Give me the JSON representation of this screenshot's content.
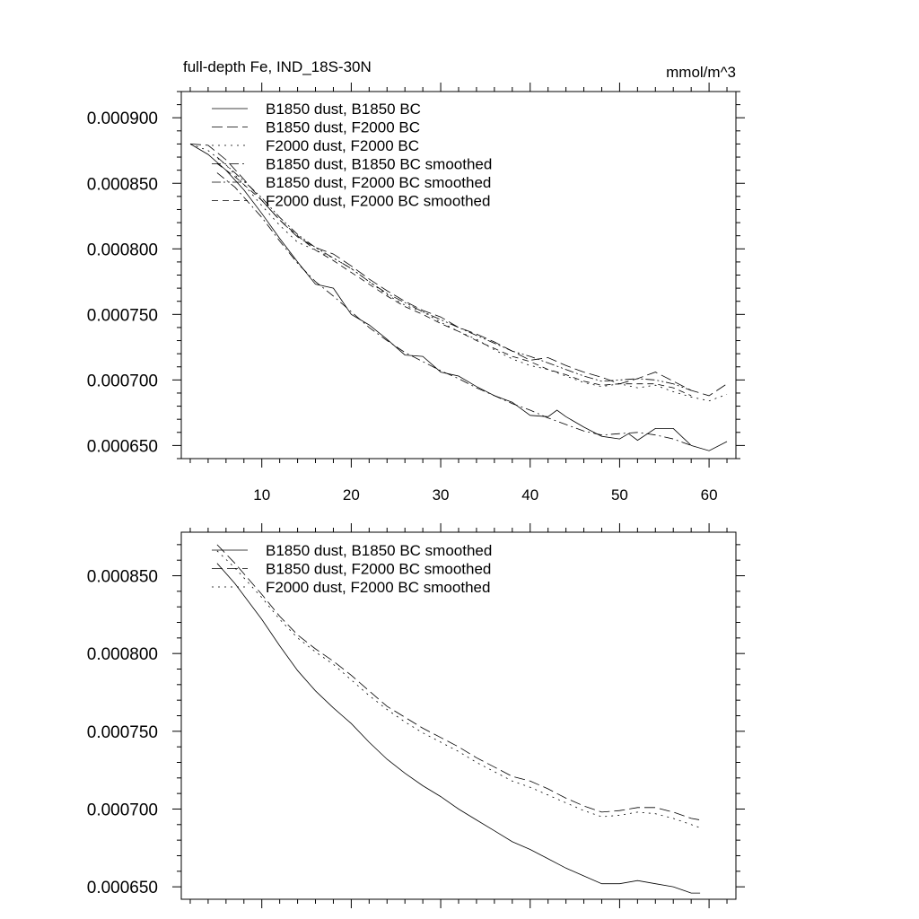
{
  "chart_data": [
    {
      "type": "line",
      "title": "full-depth Fe, IND_18S-30N",
      "units": "mmol/m^3",
      "xlim": [
        1,
        63
      ],
      "ylim": [
        0.00064,
        0.00092
      ],
      "xticks": [
        10,
        20,
        30,
        40,
        50,
        60
      ],
      "yticks": [
        0.00065,
        0.0007,
        0.00075,
        0.0008,
        0.00085,
        0.0009
      ],
      "ytick_labels": [
        "0.000650",
        "0.000700",
        "0.000750",
        "0.000800",
        "0.000850",
        "0.000900"
      ],
      "xtick_labels": [
        "10",
        "20",
        "30",
        "40",
        "50",
        "60"
      ],
      "series": [
        {
          "name": "B1850 dust, B1850 BC",
          "dash": "solid",
          "x": [
            2,
            4,
            6,
            8,
            10,
            12,
            14,
            16,
            18,
            20,
            22,
            24,
            26,
            28,
            30,
            32,
            34,
            36,
            38,
            40,
            42,
            43,
            44,
            46,
            48,
            50,
            51,
            52,
            54,
            56,
            58,
            60,
            62
          ],
          "values": [
            0.00088,
            0.000872,
            0.00086,
            0.000845,
            0.000827,
            0.000808,
            0.00079,
            0.000773,
            0.00077,
            0.00075,
            0.000742,
            0.000731,
            0.000719,
            0.000718,
            0.000706,
            0.000703,
            0.000695,
            0.000688,
            0.000683,
            0.000673,
            0.000672,
            0.000677,
            0.000672,
            0.000664,
            0.000657,
            0.000655,
            0.000659,
            0.000654,
            0.000663,
            0.000663,
            0.00065,
            0.000646,
            0.000653
          ]
        },
        {
          "name": "B1850 dust, F2000 BC",
          "dash": "long",
          "x": [
            2,
            4,
            6,
            8,
            10,
            12,
            14,
            16,
            18,
            20,
            22,
            24,
            26,
            28,
            30,
            32,
            34,
            36,
            38,
            40,
            42,
            44,
            46,
            48,
            50,
            52,
            54,
            56,
            58,
            60,
            62
          ],
          "values": [
            0.00088,
            0.000879,
            0.000868,
            0.000853,
            0.000837,
            0.000822,
            0.000809,
            0.000801,
            0.000796,
            0.000787,
            0.000777,
            0.000768,
            0.00076,
            0.000753,
            0.000748,
            0.00074,
            0.000735,
            0.000729,
            0.000722,
            0.000715,
            0.000717,
            0.000711,
            0.000706,
            0.000702,
            0.000697,
            0.000701,
            0.000706,
            0.000699,
            0.000692,
            0.000688,
            0.000697
          ]
        },
        {
          "name": "F2000 dust, F2000 BC",
          "dash": "dot",
          "x": [
            2,
            4,
            6,
            8,
            10,
            12,
            14,
            16,
            18,
            20,
            22,
            24,
            26,
            28,
            30,
            32,
            34,
            36,
            38,
            40,
            42,
            44,
            46,
            48,
            50,
            52,
            54,
            56,
            58,
            60,
            62
          ],
          "values": [
            0.00088,
            0.000875,
            0.000864,
            0.000849,
            0.000833,
            0.000818,
            0.000805,
            0.000799,
            0.000793,
            0.000785,
            0.000775,
            0.000765,
            0.000757,
            0.000752,
            0.000744,
            0.000737,
            0.000731,
            0.000723,
            0.000716,
            0.000711,
            0.000708,
            0.000703,
            0.000698,
            0.000695,
            0.000697,
            0.000694,
            0.000696,
            0.000691,
            0.000687,
            0.000684,
            0.000689
          ]
        },
        {
          "name": "B1850 dust, B1850 BC smoothed",
          "dash": "dashdot",
          "x": [
            5,
            7,
            10,
            12,
            14,
            16,
            18,
            20,
            22,
            24,
            26,
            28,
            30,
            32,
            34,
            36,
            38,
            40,
            42,
            44,
            46,
            48,
            50,
            52,
            54,
            56,
            58
          ],
          "values": [
            0.000858,
            0.000847,
            0.000824,
            0.000806,
            0.000789,
            0.000775,
            0.000764,
            0.000752,
            0.00074,
            0.00073,
            0.000721,
            0.000714,
            0.000707,
            0.000701,
            0.000694,
            0.000688,
            0.000682,
            0.000677,
            0.000671,
            0.000666,
            0.000661,
            0.000658,
            0.000659,
            0.00066,
            0.000658,
            0.000655,
            0.00065
          ]
        },
        {
          "name": "B1850 dust, F2000 BC smoothed",
          "dash": "dashdotdot",
          "x": [
            5,
            7,
            10,
            12,
            14,
            16,
            18,
            20,
            22,
            24,
            26,
            28,
            30,
            32,
            34,
            36,
            38,
            40,
            42,
            44,
            46,
            48,
            50,
            52,
            54,
            56,
            58
          ],
          "values": [
            0.00087,
            0.000858,
            0.000839,
            0.000824,
            0.000811,
            0.000801,
            0.000793,
            0.000785,
            0.000775,
            0.000766,
            0.000759,
            0.000752,
            0.000746,
            0.00074,
            0.000734,
            0.000728,
            0.000722,
            0.000718,
            0.000713,
            0.000708,
            0.000703,
            0.000699,
            0.0007,
            0.000701,
            0.0007,
            0.000697,
            0.000692
          ]
        },
        {
          "name": "F2000 dust, F2000 BC smoothed",
          "dash": "medium",
          "x": [
            5,
            7,
            10,
            12,
            14,
            16,
            18,
            20,
            22,
            24,
            26,
            28,
            30,
            32,
            34,
            36,
            38,
            40,
            42,
            44,
            46,
            48,
            50,
            52,
            54,
            56,
            58
          ],
          "values": [
            0.000865,
            0.000855,
            0.000837,
            0.000822,
            0.00081,
            0.000799,
            0.000791,
            0.000782,
            0.000773,
            0.000764,
            0.000756,
            0.00075,
            0.000743,
            0.000737,
            0.00073,
            0.000724,
            0.000718,
            0.000714,
            0.000708,
            0.000704,
            0.000699,
            0.000696,
            0.000697,
            0.000697,
            0.000697,
            0.000694,
            0.000688
          ]
        }
      ]
    },
    {
      "type": "line",
      "xlim": [
        1,
        63
      ],
      "ylim": [
        0.000642,
        0.000878
      ],
      "xticks": [
        10,
        20,
        30,
        40,
        50,
        60
      ],
      "yticks": [
        0.00065,
        0.0007,
        0.00075,
        0.0008,
        0.00085
      ],
      "ytick_labels": [
        "0.000650",
        "0.000700",
        "0.000750",
        "0.000800",
        "0.000850"
      ],
      "series": [
        {
          "name": "B1850 dust, B1850 BC smoothed",
          "dash": "solid",
          "x": [
            5,
            7,
            10,
            12,
            14,
            16,
            18,
            20,
            22,
            24,
            26,
            28,
            30,
            32,
            34,
            36,
            38,
            40,
            42,
            44,
            46,
            48,
            50,
            52,
            54,
            56,
            58,
            59
          ],
          "values": [
            0.000858,
            0.000845,
            0.000822,
            0.000805,
            0.000789,
            0.000776,
            0.000765,
            0.000755,
            0.000743,
            0.000732,
            0.000723,
            0.000715,
            0.000708,
            0.0007,
            0.000693,
            0.000686,
            0.000679,
            0.000674,
            0.000668,
            0.000662,
            0.000657,
            0.000652,
            0.000652,
            0.000654,
            0.000652,
            0.00065,
            0.000646,
            0.000646
          ]
        },
        {
          "name": "B1850 dust, F2000 BC smoothed",
          "dash": "long",
          "x": [
            5,
            7,
            10,
            12,
            14,
            16,
            18,
            20,
            22,
            24,
            26,
            28,
            30,
            32,
            34,
            36,
            38,
            40,
            42,
            44,
            46,
            48,
            50,
            52,
            54,
            56,
            58,
            59
          ],
          "values": [
            0.00087,
            0.000858,
            0.000838,
            0.000824,
            0.000812,
            0.000803,
            0.000795,
            0.000786,
            0.000776,
            0.000766,
            0.000759,
            0.000752,
            0.000746,
            0.00074,
            0.000733,
            0.000727,
            0.000721,
            0.000718,
            0.000713,
            0.000707,
            0.000702,
            0.000698,
            0.000699,
            0.000701,
            0.000701,
            0.000698,
            0.000694,
            0.000693
          ]
        },
        {
          "name": "F2000 dust, F2000 BC smoothed",
          "dash": "dot",
          "x": [
            5,
            7,
            10,
            12,
            14,
            16,
            18,
            20,
            22,
            24,
            26,
            28,
            30,
            32,
            34,
            36,
            38,
            40,
            42,
            44,
            46,
            48,
            50,
            52,
            54,
            56,
            58,
            59
          ],
          "values": [
            0.000866,
            0.000855,
            0.000836,
            0.000822,
            0.00081,
            0.000801,
            0.000793,
            0.000783,
            0.000773,
            0.000764,
            0.000756,
            0.000749,
            0.000743,
            0.000737,
            0.00073,
            0.000724,
            0.000718,
            0.000714,
            0.000709,
            0.000704,
            0.000699,
            0.000695,
            0.000696,
            0.000698,
            0.000697,
            0.000694,
            0.00069,
            0.000688
          ]
        }
      ]
    }
  ]
}
